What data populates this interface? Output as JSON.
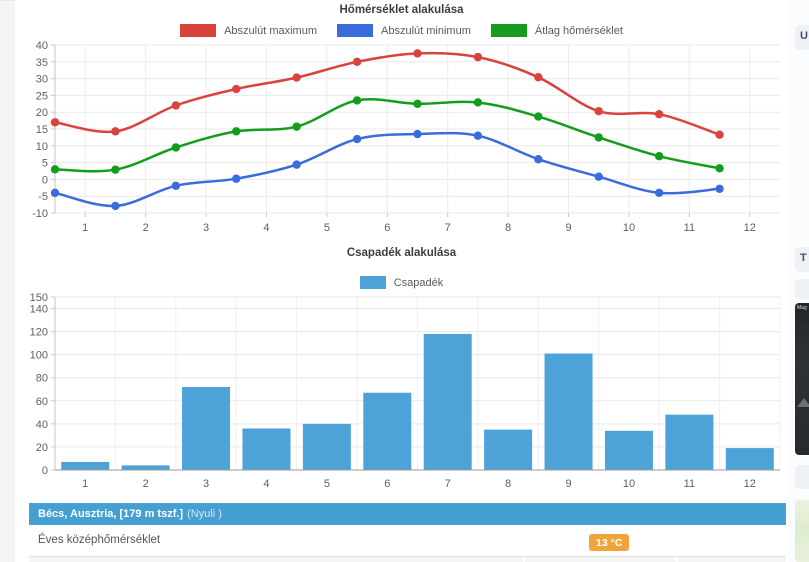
{
  "chart_data": [
    {
      "type": "line",
      "title": "Hőmérséklet alakulása",
      "categories": [
        "1",
        "2",
        "3",
        "4",
        "5",
        "6",
        "7",
        "8",
        "9",
        "10",
        "11",
        "12"
      ],
      "series": [
        {
          "name": "Abszulút maximum",
          "color": "#d8443c",
          "values": [
            17,
            14.3,
            22,
            26.9,
            30.3,
            35,
            37.5,
            36.4,
            30.4,
            20.3,
            19.4,
            13.3
          ]
        },
        {
          "name": "Abszulút minimum",
          "color": "#3b6cdb",
          "values": [
            -4,
            -7.9,
            -1.9,
            0.2,
            4.4,
            12,
            13.5,
            13,
            6,
            0.8,
            -4,
            -2.8
          ]
        },
        {
          "name": "Átlag hőmérséklet",
          "color": "#169c1d",
          "values": [
            3,
            2.9,
            9.5,
            14.3,
            15.7,
            23.5,
            22.5,
            22.9,
            18.7,
            12.5,
            6.9,
            3.3
          ]
        }
      ],
      "xlabel": "",
      "ylabel": "",
      "ylim": [
        -10,
        40
      ],
      "yticks": [
        40,
        35,
        30,
        25,
        20,
        15,
        10,
        5,
        0,
        -5,
        -10
      ],
      "grid": true,
      "legend_position": "top",
      "point_markers": true,
      "smooth": true
    },
    {
      "type": "bar",
      "title": "Csapadék alakulása",
      "categories": [
        "1",
        "2",
        "3",
        "4",
        "5",
        "6",
        "7",
        "8",
        "9",
        "10",
        "11",
        "12"
      ],
      "series": [
        {
          "name": "Csapadék",
          "color": "#4da3d7",
          "values": [
            7,
            4,
            72,
            36,
            40,
            67,
            118,
            35,
            101,
            34,
            48,
            19
          ]
        }
      ],
      "xlabel": "",
      "ylabel": "",
      "ylim": [
        0,
        150
      ],
      "yticks": [
        150,
        140,
        120,
        100,
        80,
        60,
        40,
        20,
        0
      ],
      "grid": true,
      "legend_position": "top"
    }
  ],
  "footer": {
    "location_title": "Bécs, Ausztria, [179 m tszf.]",
    "location_note": "(Nyuli )",
    "bar_color": "#459fd1",
    "annual_label": "Éves középhőmérséklet",
    "annual_value": "13 °C",
    "badge_color": "#f0a53c"
  },
  "sidebar": {
    "card_top_label": "U",
    "card_mid_label": "T",
    "dark_thumb_caption": "Mag"
  }
}
